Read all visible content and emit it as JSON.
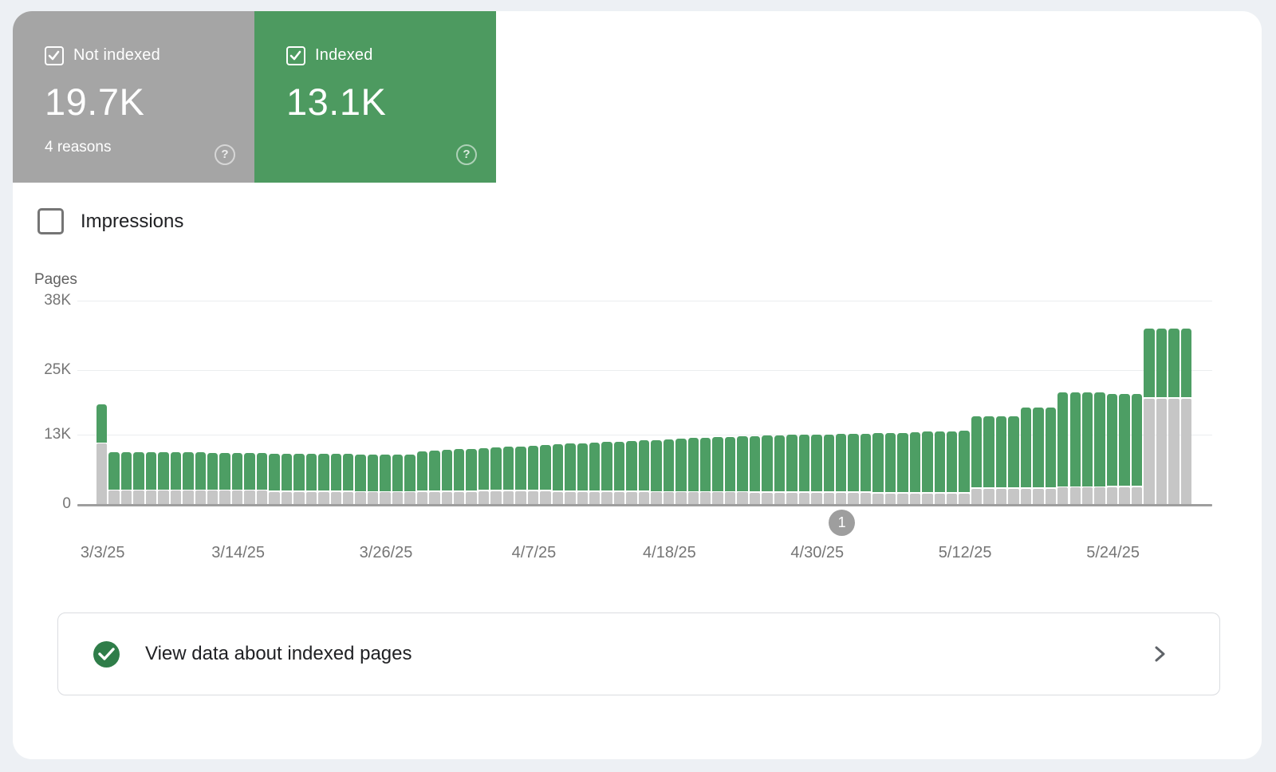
{
  "summary_cards": {
    "not_indexed": {
      "label": "Not indexed",
      "value": "19.7K",
      "sub": "4 reasons",
      "checked": true,
      "bg": "#a5a5a5"
    },
    "indexed": {
      "label": "Indexed",
      "value": "13.1K",
      "checked": true,
      "bg": "#4d9a60"
    }
  },
  "help_icon_glyph": "?",
  "impressions_toggle": {
    "label": "Impressions",
    "checked": false
  },
  "chart_data": {
    "type": "bar",
    "stacked": true,
    "ylabel": "Pages",
    "ylim": [
      0,
      38000
    ],
    "y_ticks": [
      {
        "label": "38K",
        "value": 38000
      },
      {
        "label": "25K",
        "value": 25000
      },
      {
        "label": "13K",
        "value": 13000
      },
      {
        "label": "0",
        "value": 0
      }
    ],
    "grid": true,
    "legend_position": "none",
    "x_ticks": [
      {
        "label": "3/3/25",
        "day_index": 0
      },
      {
        "label": "3/14/25",
        "day_index": 11
      },
      {
        "label": "3/26/25",
        "day_index": 23
      },
      {
        "label": "4/7/25",
        "day_index": 35
      },
      {
        "label": "4/18/25",
        "day_index": 46
      },
      {
        "label": "4/30/25",
        "day_index": 58
      },
      {
        "label": "5/12/25",
        "day_index": 70
      },
      {
        "label": "5/24/25",
        "day_index": 82
      }
    ],
    "annotation_marker": {
      "label": "1",
      "day_index": 60
    },
    "categories": [
      "3/3/25",
      "3/4/25",
      "3/5/25",
      "3/6/25",
      "3/7/25",
      "3/8/25",
      "3/9/25",
      "3/10/25",
      "3/11/25",
      "3/12/25",
      "3/13/25",
      "3/14/25",
      "3/15/25",
      "3/16/25",
      "3/17/25",
      "3/18/25",
      "3/19/25",
      "3/20/25",
      "3/21/25",
      "3/22/25",
      "3/23/25",
      "3/24/25",
      "3/25/25",
      "3/26/25",
      "3/27/25",
      "3/28/25",
      "3/29/25",
      "3/30/25",
      "3/31/25",
      "4/1/25",
      "4/2/25",
      "4/3/25",
      "4/4/25",
      "4/5/25",
      "4/6/25",
      "4/7/25",
      "4/8/25",
      "4/9/25",
      "4/10/25",
      "4/11/25",
      "4/12/25",
      "4/13/25",
      "4/14/25",
      "4/15/25",
      "4/16/25",
      "4/17/25",
      "4/18/25",
      "4/19/25",
      "4/20/25",
      "4/21/25",
      "4/22/25",
      "4/23/25",
      "4/24/25",
      "4/25/25",
      "4/26/25",
      "4/27/25",
      "4/28/25",
      "4/29/25",
      "4/30/25",
      "5/1/25",
      "5/2/25",
      "5/3/25",
      "5/4/25",
      "5/5/25",
      "5/6/25",
      "5/7/25",
      "5/8/25",
      "5/9/25",
      "5/10/25",
      "5/11/25",
      "5/12/25",
      "5/13/25",
      "5/14/25",
      "5/15/25",
      "5/16/25",
      "5/17/25",
      "5/18/25",
      "5/19/25",
      "5/20/25",
      "5/21/25",
      "5/22/25",
      "5/23/25",
      "5/24/25",
      "5/25/25",
      "5/26/25",
      "5/27/25",
      "5/28/25",
      "5/29/25",
      "5/30/25"
    ],
    "series": [
      {
        "name": "Not indexed",
        "color": "#c6c6c6",
        "values": [
          11300,
          2500,
          2500,
          2500,
          2500,
          2500,
          2500,
          2500,
          2500,
          2500,
          2500,
          2500,
          2500,
          2500,
          2300,
          2300,
          2300,
          2300,
          2300,
          2300,
          2300,
          2200,
          2200,
          2200,
          2200,
          2200,
          2300,
          2300,
          2300,
          2300,
          2300,
          2400,
          2400,
          2400,
          2400,
          2400,
          2400,
          2300,
          2300,
          2300,
          2300,
          2300,
          2300,
          2300,
          2300,
          2200,
          2200,
          2200,
          2200,
          2200,
          2200,
          2200,
          2200,
          2100,
          2100,
          2100,
          2100,
          2100,
          2100,
          2100,
          2100,
          2100,
          2100,
          2000,
          2000,
          2000,
          2000,
          2000,
          2000,
          2000,
          2000,
          2900,
          2900,
          2900,
          2900,
          2900,
          2900,
          2900,
          3100,
          3100,
          3100,
          3100,
          3200,
          3200,
          3200,
          19700,
          19700,
          19700,
          19700
        ]
      },
      {
        "name": "Indexed",
        "color": "#4d9e64",
        "values": [
          7300,
          7200,
          7200,
          7200,
          7200,
          7200,
          7200,
          7200,
          7200,
          7100,
          7100,
          7100,
          7100,
          7100,
          7100,
          7100,
          7100,
          7100,
          7100,
          7100,
          7100,
          7100,
          7100,
          7100,
          7100,
          7100,
          7500,
          7700,
          7900,
          8000,
          8000,
          8100,
          8200,
          8300,
          8400,
          8500,
          8600,
          8900,
          9000,
          9100,
          9200,
          9300,
          9400,
          9500,
          9600,
          9800,
          9900,
          10000,
          10100,
          10200,
          10300,
          10300,
          10400,
          10600,
          10700,
          10700,
          10800,
          10800,
          10900,
          10900,
          11000,
          11000,
          11000,
          11200,
          11300,
          11300,
          11400,
          11500,
          11500,
          11600,
          11700,
          13500,
          13500,
          13500,
          13500,
          15200,
          15200,
          15200,
          17700,
          17700,
          17700,
          17700,
          17400,
          17400,
          17400,
          13100,
          13100,
          13100,
          13100
        ]
      }
    ]
  },
  "footer_link": {
    "label": "View data about indexed pages"
  }
}
